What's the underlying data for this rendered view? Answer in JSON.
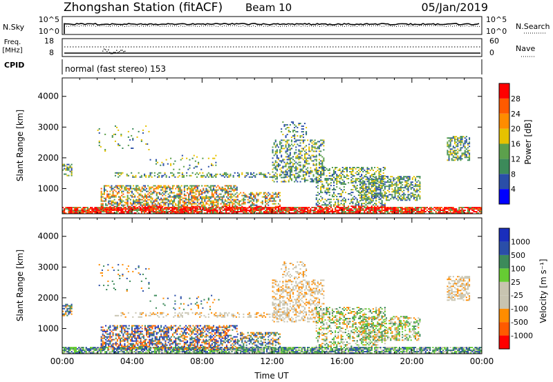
{
  "header": {
    "title": "Zhongshan Station (fitACF)",
    "beam": "Beam 10",
    "date": "05/Jan/2019"
  },
  "top_panels": {
    "nsky": {
      "label": "N.Sky",
      "tick_top": "10^5",
      "tick_bottom": "10^0",
      "right_label": "N.Search",
      "right_tick_top": "10^5",
      "right_tick_bottom": "10^0"
    },
    "freq": {
      "label_line1": "Freq.",
      "label_line2": "[MHz]",
      "tick_top": "18",
      "tick_bottom": "8",
      "right_label": "Nave",
      "right_tick_top": "60",
      "right_tick_bottom": "0"
    },
    "cpid": {
      "label": "CPID",
      "text": "normal (fast stereo) 153"
    }
  },
  "colors": {
    "power": [
      "#0000ff",
      "#2a4ea8",
      "#3c8a5a",
      "#5ca04c",
      "#e6c200",
      "#ff8c00",
      "#ff5a00",
      "#ff0000"
    ],
    "velocity": [
      "#ff0000",
      "#ff5a00",
      "#ff8c00",
      "#c8c4b0",
      "#c8c4b0",
      "#66cc33",
      "#3c8a5a",
      "#2a4ea8",
      "#1a2ebc"
    ]
  },
  "chart_data": [
    {
      "type": "heatmap",
      "name": "power",
      "xlabel": "",
      "ylabel": "Slant Range [km]",
      "x_range_hours": [
        0,
        24
      ],
      "ylim": [
        180,
        4600
      ],
      "yticks": [
        "1000",
        "2000",
        "3000",
        "4000"
      ],
      "colorbar_label": "Power [dB]",
      "colorbar_ticks": [
        "4",
        "8",
        "12",
        "16",
        "20",
        "24",
        "28"
      ],
      "colorbar_range": [
        0,
        32
      ]
    },
    {
      "type": "heatmap",
      "name": "velocity",
      "xlabel": "Time UT",
      "ylabel": "Slant Range [km]",
      "x_range_hours": [
        0,
        24
      ],
      "ylim": [
        180,
        4600
      ],
      "xticks": [
        "00:00",
        "04:00",
        "08:00",
        "12:00",
        "16:00",
        "20:00",
        "00:00"
      ],
      "yticks": [
        "1000",
        "2000",
        "3000",
        "4000"
      ],
      "colorbar_label": "Velocity [m s⁻¹]",
      "colorbar_ticks": [
        "-1000",
        "-500",
        "-100",
        "-25",
        "25",
        "100",
        "500",
        "1000"
      ]
    }
  ]
}
